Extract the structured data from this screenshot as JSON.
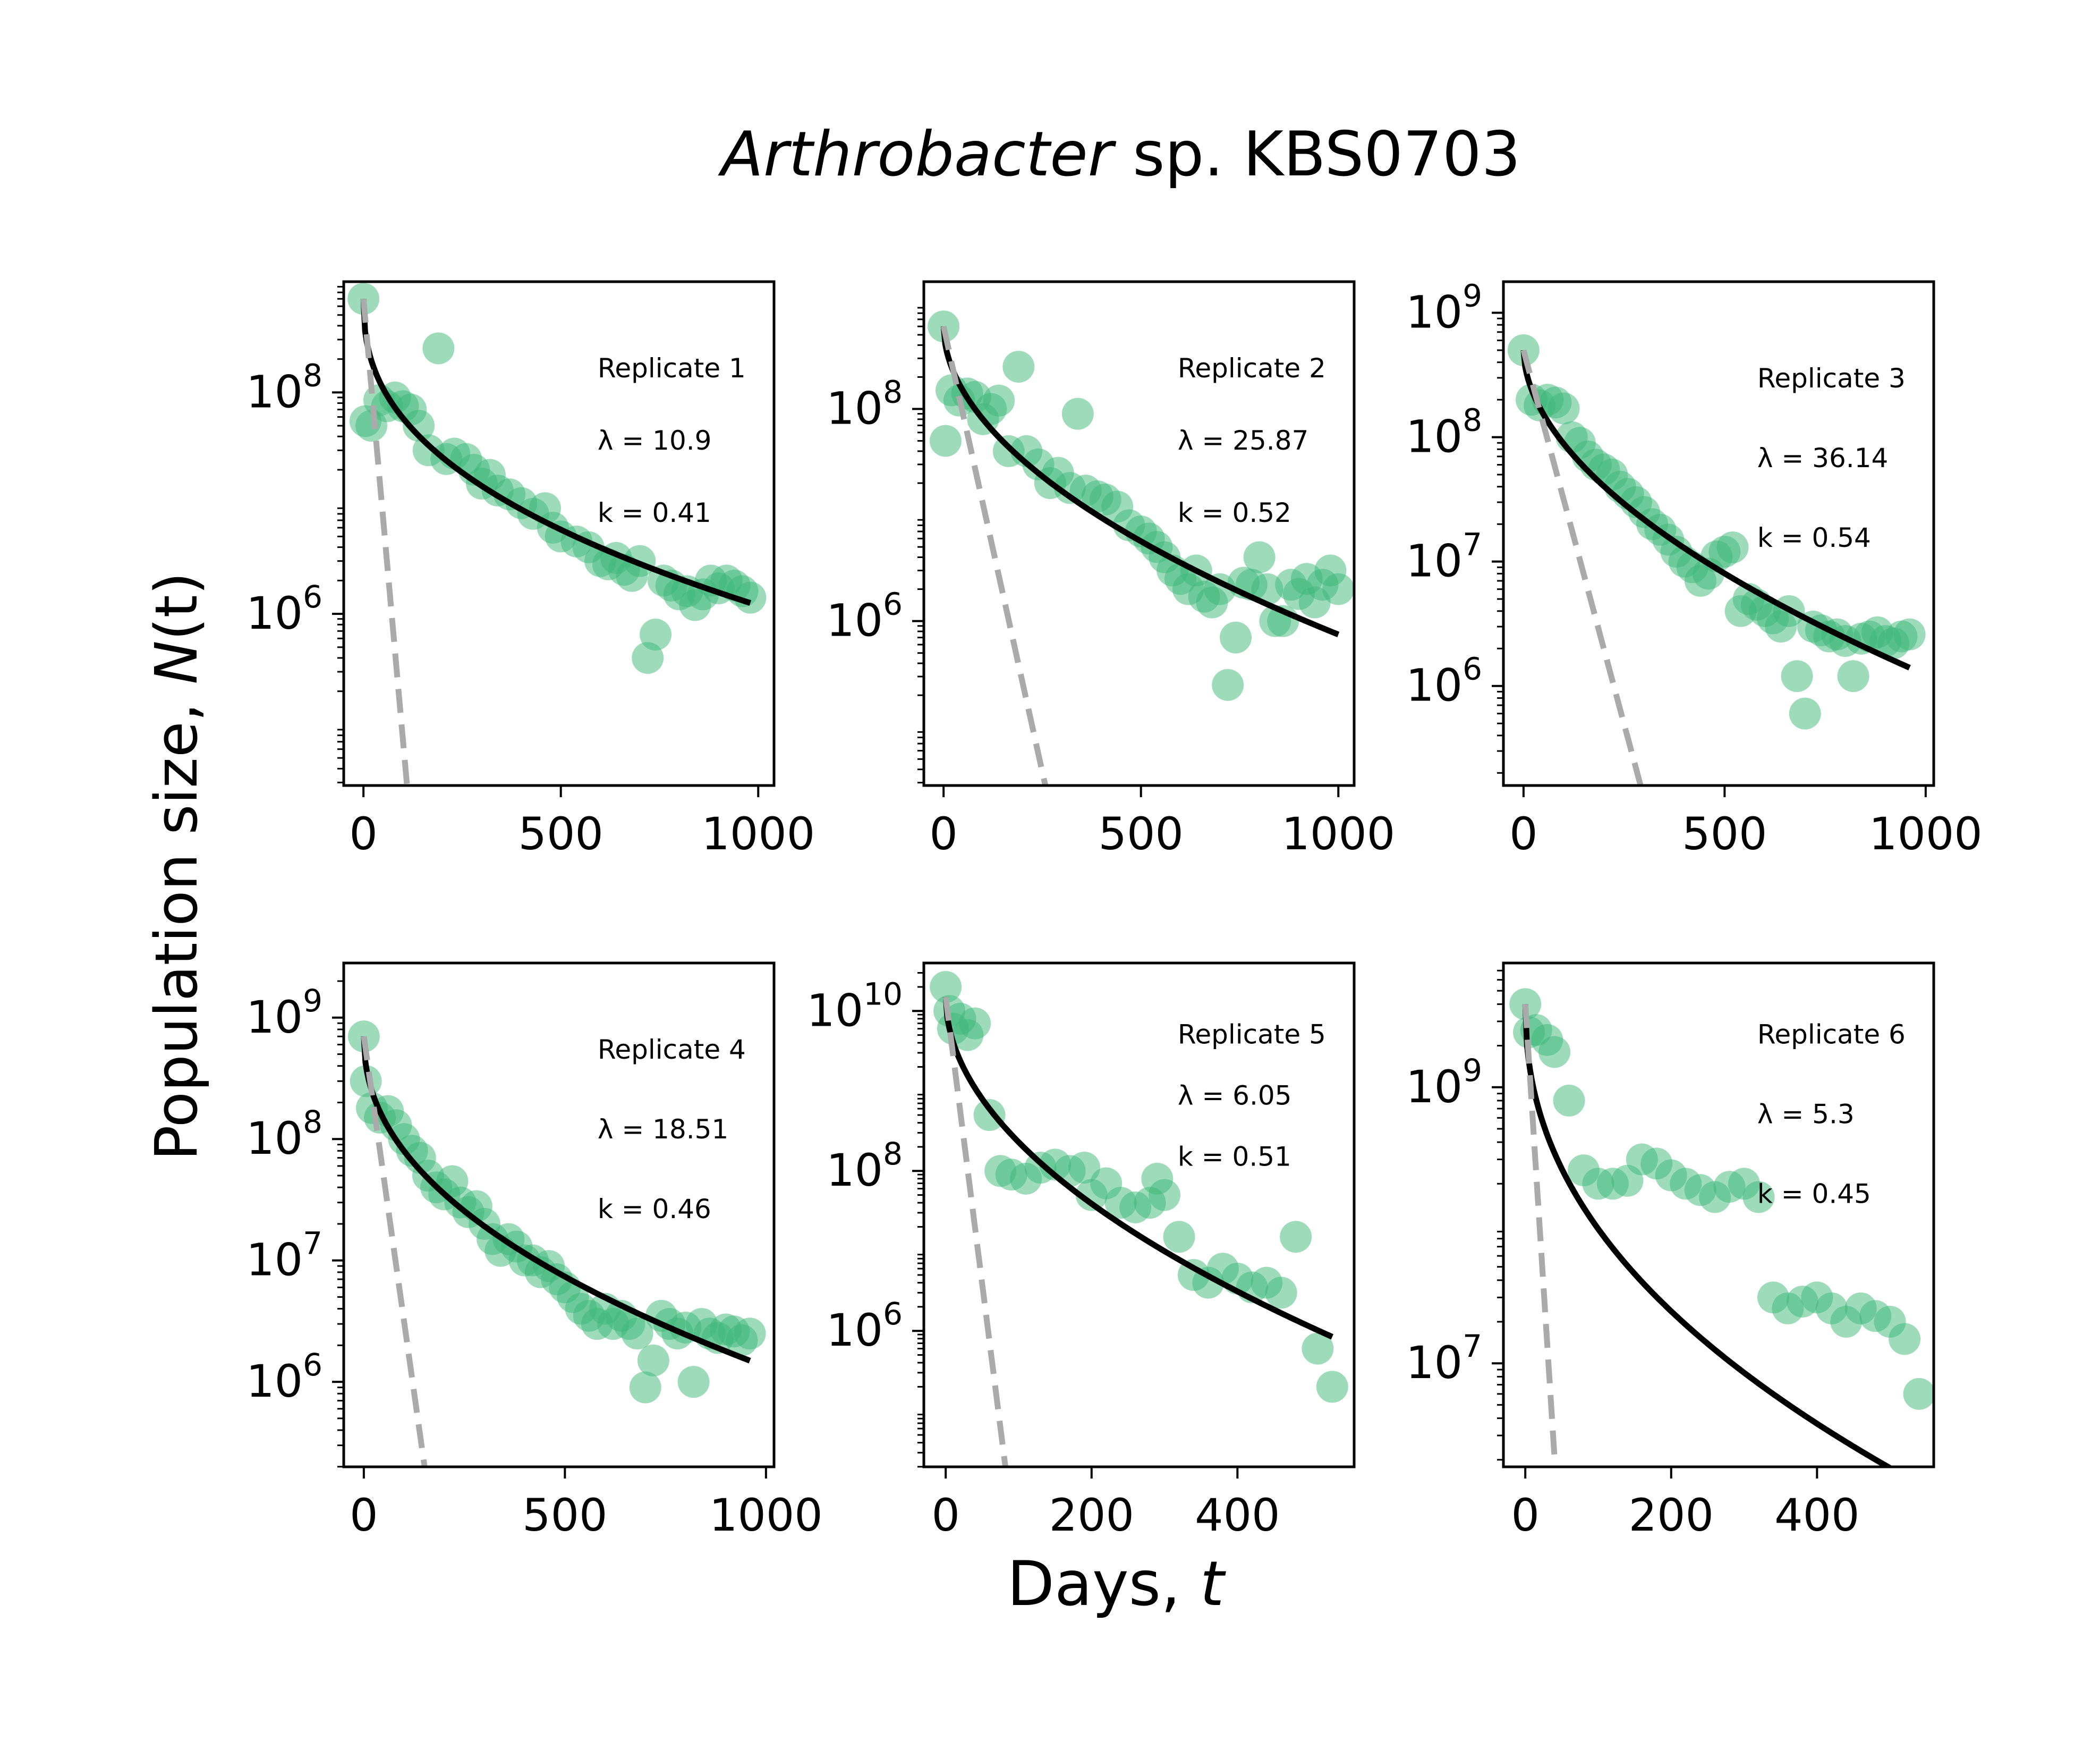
{
  "figure": {
    "title_italic": "Arthrobacter",
    "title_rest": " sp. KBS0703",
    "xlabel": "Days, ",
    "xlabel_var": "t",
    "ylabel_prefix": "Population size, ",
    "ylabel_var": "N",
    "ylabel_suffix": "(t)"
  },
  "colors": {
    "points": "#3cb878",
    "fit": "#000000",
    "exp": "#aaaaaa"
  },
  "chart_data": [
    {
      "type": "scatter",
      "replicate": "Replicate 1",
      "lambda_label": "λ = 10.9",
      "k_label": "k = 0.41",
      "lambda": 10.9,
      "k": 0.41,
      "N0": 700000000,
      "xlim": [
        -50,
        1040
      ],
      "ylim_log10": [
        4.45,
        9.0
      ],
      "xticks": [
        0,
        500,
        1000
      ],
      "yticks_exp": [
        6,
        8
      ],
      "x": [
        0,
        5,
        20,
        40,
        60,
        80,
        100,
        120,
        140,
        165,
        190,
        210,
        230,
        260,
        280,
        300,
        320,
        340,
        370,
        400,
        430,
        460,
        480,
        500,
        540,
        570,
        600,
        620,
        640,
        660,
        680,
        700,
        720,
        740,
        760,
        780,
        800,
        820,
        840,
        860,
        880,
        900,
        920,
        940,
        960,
        980
      ],
      "y": [
        700000000,
        55000000,
        50000000,
        85000000,
        75000000,
        90000000,
        75000000,
        70000000,
        50000000,
        30000000,
        250000000,
        25000000,
        28000000,
        25000000,
        20000000,
        15000000,
        18000000,
        13000000,
        12000000,
        10000000,
        8000000,
        9000000,
        6000000,
        5000000,
        4500000,
        4000000,
        3000000,
        2800000,
        3200000,
        2500000,
        2200000,
        3000000,
        400000,
        650000,
        2000000,
        1800000,
        1500000,
        1600000,
        1200000,
        1500000,
        2000000,
        1700000,
        2000000,
        1800000,
        1600000,
        1400000
      ]
    },
    {
      "type": "scatter",
      "replicate": "Replicate 2",
      "lambda_label": "λ = 25.87",
      "k_label": "k = 0.52",
      "lambda": 25.87,
      "k": 0.52,
      "N0": 600000000,
      "xlim": [
        -50,
        1040
      ],
      "ylim_log10": [
        4.45,
        9.2
      ],
      "xticks": [
        0,
        500,
        1000
      ],
      "yticks_exp": [
        6,
        8
      ],
      "x": [
        0,
        5,
        20,
        40,
        60,
        80,
        100,
        120,
        140,
        165,
        190,
        210,
        240,
        270,
        290,
        320,
        340,
        360,
        390,
        410,
        440,
        470,
        500,
        520,
        540,
        560,
        580,
        600,
        620,
        640,
        660,
        680,
        700,
        720,
        740,
        760,
        780,
        800,
        820,
        840,
        860,
        880,
        900,
        920,
        940,
        960,
        980,
        1000
      ],
      "y": [
        600000000,
        50000000,
        150000000,
        120000000,
        140000000,
        130000000,
        80000000,
        100000000,
        120000000,
        40000000,
        250000000,
        40000000,
        30000000,
        20000000,
        25000000,
        18000000,
        90000000,
        17000000,
        15000000,
        14000000,
        12000000,
        8000000,
        7000000,
        6000000,
        5000000,
        4000000,
        3000000,
        2500000,
        2000000,
        3000000,
        1700000,
        1500000,
        2000000,
        250000,
        700000,
        2300000,
        2200000,
        4000000,
        2000000,
        1000000,
        1000000,
        2200000,
        1800000,
        2500000,
        1500000,
        2200000,
        3000000,
        2000000
      ]
    },
    {
      "type": "scatter",
      "replicate": "Replicate 3",
      "lambda_label": "λ = 36.14",
      "k_label": "k = 0.54",
      "lambda": 36.14,
      "k": 0.54,
      "N0": 500000000,
      "xlim": [
        -50,
        1020
      ],
      "ylim_log10": [
        5.2,
        9.25
      ],
      "xticks": [
        0,
        500,
        1000
      ],
      "yticks_exp": [
        6,
        7,
        8,
        9
      ],
      "x": [
        0,
        20,
        40,
        60,
        80,
        100,
        120,
        140,
        160,
        180,
        200,
        220,
        240,
        260,
        280,
        300,
        320,
        340,
        360,
        380,
        400,
        420,
        440,
        460,
        480,
        500,
        520,
        540,
        560,
        580,
        600,
        620,
        640,
        660,
        680,
        700,
        720,
        740,
        760,
        780,
        800,
        820,
        840,
        860,
        880,
        900,
        920,
        940,
        960
      ],
      "y": [
        500000000,
        200000000,
        180000000,
        200000000,
        190000000,
        170000000,
        100000000,
        90000000,
        70000000,
        60000000,
        55000000,
        50000000,
        40000000,
        35000000,
        30000000,
        25000000,
        20000000,
        18000000,
        15000000,
        12000000,
        10000000,
        9000000,
        7000000,
        8000000,
        11000000,
        12000000,
        13000000,
        4000000,
        5000000,
        4500000,
        4000000,
        3500000,
        3000000,
        4000000,
        1200000,
        600000,
        3000000,
        2800000,
        2500000,
        2600000,
        2300000,
        1200000,
        2400000,
        2500000,
        2700000,
        2300000,
        2200000,
        2500000,
        2600000
      ]
    },
    {
      "type": "scatter",
      "replicate": "Replicate 4",
      "lambda_label": "λ = 18.51",
      "k_label": "k = 0.46",
      "lambda": 18.51,
      "k": 0.46,
      "N0": 700000000,
      "xlim": [
        -50,
        1020
      ],
      "ylim_log10": [
        5.3,
        9.45
      ],
      "xticks": [
        0,
        500,
        1000
      ],
      "yticks_exp": [
        6,
        7,
        8,
        9
      ],
      "x": [
        0,
        5,
        20,
        40,
        60,
        80,
        100,
        120,
        140,
        160,
        180,
        200,
        220,
        240,
        260,
        280,
        300,
        320,
        340,
        360,
        380,
        400,
        420,
        440,
        460,
        480,
        500,
        520,
        540,
        560,
        580,
        600,
        620,
        640,
        660,
        680,
        700,
        720,
        740,
        760,
        780,
        800,
        820,
        840,
        860,
        880,
        900,
        920,
        940,
        960
      ],
      "y": [
        700000000,
        300000000,
        180000000,
        150000000,
        170000000,
        130000000,
        100000000,
        80000000,
        70000000,
        50000000,
        40000000,
        35000000,
        45000000,
        30000000,
        25000000,
        28000000,
        20000000,
        15000000,
        12000000,
        15000000,
        13000000,
        10000000,
        10000000,
        8000000,
        9000000,
        7000000,
        6000000,
        5000000,
        4000000,
        3500000,
        3000000,
        4000000,
        3000000,
        3500000,
        3000000,
        2500000,
        900000,
        1500000,
        3500000,
        3000000,
        2500000,
        2800000,
        1000000,
        3000000,
        2500000,
        2300000,
        2700000,
        2600000,
        2200000,
        2500000
      ]
    },
    {
      "type": "scatter",
      "replicate": "Replicate 5",
      "lambda_label": "λ = 6.05",
      "k_label": "k = 0.51",
      "lambda": 6.05,
      "k": 0.51,
      "N0": 15000000000,
      "xlim": [
        -30,
        560
      ],
      "ylim_log10": [
        4.3,
        10.6
      ],
      "xticks": [
        0,
        200,
        400
      ],
      "yticks_exp": [
        6,
        8,
        10
      ],
      "x": [
        0,
        5,
        10,
        20,
        30,
        40,
        60,
        75,
        90,
        110,
        130,
        150,
        170,
        190,
        200,
        220,
        240,
        260,
        280,
        290,
        300,
        320,
        340,
        360,
        380,
        400,
        420,
        440,
        460,
        480,
        510,
        530
      ],
      "y": [
        20000000000,
        10000000000,
        6000000000,
        8000000000,
        5000000000,
        7000000000,
        500000000,
        100000000,
        90000000,
        80000000,
        110000000,
        120000000,
        100000000,
        110000000,
        50000000,
        70000000,
        40000000,
        35000000,
        40000000,
        80000000,
        50000000,
        15000000,
        5000000,
        4000000,
        6000000,
        4500000,
        3500000,
        4000000,
        3000000,
        15000000,
        600000,
        200000
      ]
    },
    {
      "type": "scatter",
      "replicate": "Replicate 6",
      "lambda_label": "λ = 5.3",
      "k_label": "k = 0.45",
      "lambda": 5.3,
      "k": 0.45,
      "N0": 4000000000,
      "xlim": [
        -30,
        560
      ],
      "ylim_log10": [
        6.25,
        9.9
      ],
      "xticks": [
        0,
        200,
        400
      ],
      "yticks_exp": [
        7,
        9
      ],
      "x": [
        0,
        5,
        15,
        30,
        40,
        60,
        80,
        100,
        120,
        140,
        160,
        180,
        200,
        220,
        240,
        260,
        280,
        300,
        320,
        340,
        360,
        380,
        400,
        420,
        440,
        460,
        480,
        500,
        520,
        540
      ],
      "y": [
        4000000000,
        2500000000,
        2600000000,
        2200000000,
        1800000000,
        800000000,
        250000000,
        200000000,
        200000000,
        210000000,
        300000000,
        280000000,
        230000000,
        200000000,
        180000000,
        160000000,
        190000000,
        200000000,
        160000000,
        30000000,
        25000000,
        28000000,
        30000000,
        25000000,
        20000000,
        25000000,
        22000000,
        20000000,
        15000000,
        6000000
      ]
    }
  ]
}
